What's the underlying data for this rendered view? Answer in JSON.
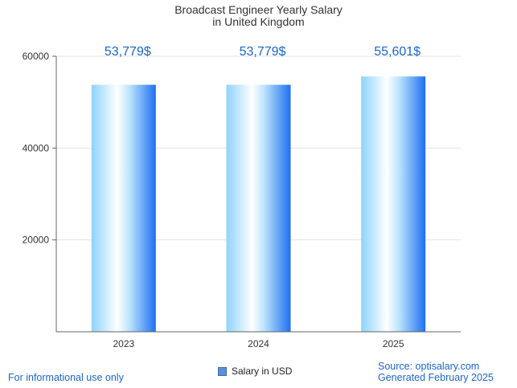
{
  "title_line1": "Broadcast Engineer Yearly Salary",
  "title_line2": "in United Kingdom",
  "chart_data": {
    "type": "bar",
    "categories": [
      "2023",
      "2024",
      "2025"
    ],
    "series": [
      {
        "name": "Salary in USD",
        "values": [
          53779,
          53779,
          55601
        ]
      }
    ],
    "data_labels": [
      "53,779$",
      "53,779$",
      "55,601$"
    ],
    "y_ticks": [
      20000,
      40000,
      60000
    ],
    "ylim": [
      0,
      60000
    ],
    "grid": true,
    "legend_position": "bottom-center",
    "bar_colors": {
      "light": "#ffffff",
      "mid": "#9ad4fb",
      "dark": "#1f6ff2"
    },
    "label_color": "#1a66cc"
  },
  "legend": {
    "label": "Salary in USD"
  },
  "footer": {
    "left": "For informational use only",
    "source": "Source: optisalary.com",
    "generated": "Generated February 2025"
  }
}
